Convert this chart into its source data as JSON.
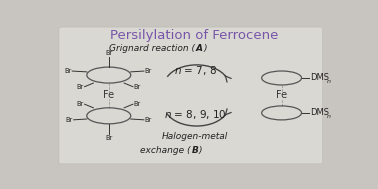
{
  "title": "Persilylation of Ferrocene",
  "title_color": "#7755AA",
  "title_fontsize": 9.5,
  "bg_color": "#C8C5C0",
  "panel_color": "#DDDBD5",
  "panel_edge_color": "#BBBAB5",
  "text_color": "#222222",
  "fe_color": "#444444",
  "br_color": "#222222",
  "arrow_color": "#444444",
  "grignard_text": "Grignard reaction (",
  "grignard_bold": "A",
  "n1_text": "n = 7, 8",
  "n2_text": "n = 8, 9, 10",
  "halogen_line1": "Halogen-metal",
  "halogen_line2": "exchange (",
  "halogen_bold": "B",
  "dms_text": "DMS",
  "n_sub": "n"
}
